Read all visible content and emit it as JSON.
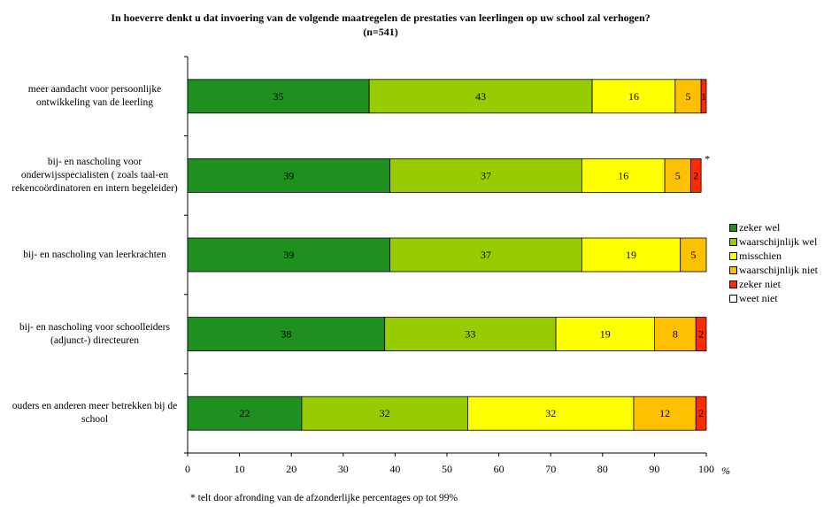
{
  "chart_data": {
    "type": "bar",
    "orientation": "horizontal",
    "stacked": true,
    "title": "In hoeverre denkt u dat invoering van de volgende maatregelen de prestaties van leerlingen op uw school zal verhogen? (n=541)",
    "xlabel": "%",
    "xlim": [
      0,
      100
    ],
    "x_ticks": [
      "0",
      "10",
      "20",
      "30",
      "40",
      "50",
      "60",
      "70",
      "80",
      "90",
      "100"
    ],
    "categories": [
      "meer aandacht voor persoonlijke ontwikkeling van de leerling",
      "bij- en nascholing voor onderwijsspecialisten ( zoals taal-en rekencoördinatoren en intern begeleider)",
      "bij- en nascholing van leerkrachten",
      "bij- en nascholing voor schoolleiders (adjunct-) directeuren",
      "ouders en anderen meer betrekken bij de school"
    ],
    "series": [
      {
        "name": "zeker wel",
        "color": "#1f8f1f",
        "values": [
          35,
          39,
          39,
          38,
          22
        ]
      },
      {
        "name": "waarschijnlijk wel",
        "color": "#99cc00",
        "values": [
          43,
          37,
          37,
          33,
          32
        ]
      },
      {
        "name": "misschien",
        "color": "#ffff00",
        "values": [
          16,
          16,
          19,
          19,
          32
        ]
      },
      {
        "name": "waarschijnlijk niet",
        "color": "#ffc000",
        "values": [
          5,
          5,
          5,
          8,
          12
        ]
      },
      {
        "name": "zeker niet",
        "color": "#ff2a00",
        "values": [
          1,
          2,
          0,
          2,
          2
        ]
      },
      {
        "name": "weet niet",
        "color": "#ffffff",
        "values": [
          0,
          0,
          0,
          0,
          0
        ]
      }
    ],
    "data_labels": [
      [
        "35",
        "43",
        "16",
        "5",
        "1",
        ""
      ],
      [
        "39",
        "37",
        "16",
        "5",
        "2",
        ""
      ],
      [
        "39",
        "37",
        "19",
        "5",
        "",
        ""
      ],
      [
        "38",
        "33",
        "19",
        "8",
        "2",
        ""
      ],
      [
        "22",
        "32",
        "32",
        "12",
        "2",
        ""
      ]
    ],
    "asterisk_category_index": 1,
    "asterisk": "*",
    "legend_position": "right",
    "grid": false,
    "footnote": "* telt door afronding van de afzonderlijke percentages op tot 99%"
  }
}
